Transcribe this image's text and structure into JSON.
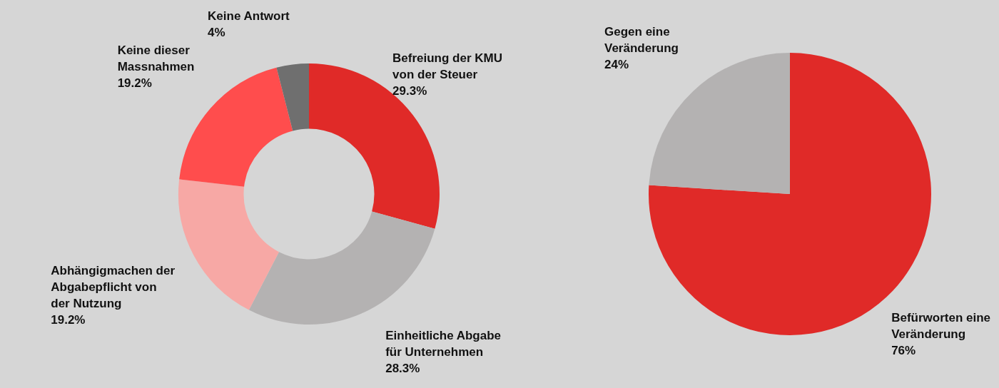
{
  "chart_data": [
    {
      "type": "donut",
      "categories": [
        "Befreiung der KMU von der Steuer",
        "Einheitliche Abgabe für Unternehmen",
        "Abhängigmachen der Abgabepflicht von der Nutzung",
        "Keine dieser Massnahmen",
        "Keine Antwort"
      ],
      "values": [
        29.3,
        28.3,
        19.2,
        19.2,
        4
      ],
      "value_labels": [
        "29.3%",
        "28.3%",
        "19.2%",
        "19.2%",
        "4%"
      ],
      "colors": [
        "#e02a28",
        "#b4b2b2",
        "#f7a8a5",
        "#ff4d4d",
        "#6f6f6f"
      ],
      "legend": false
    },
    {
      "type": "pie",
      "categories": [
        "Befürworten eine Veränderung",
        "Gegen eine Veränderung"
      ],
      "values": [
        76,
        24
      ],
      "value_labels": [
        "76%",
        "24%"
      ],
      "colors": [
        "#e02a28",
        "#b4b2b2"
      ],
      "legend": false
    }
  ]
}
